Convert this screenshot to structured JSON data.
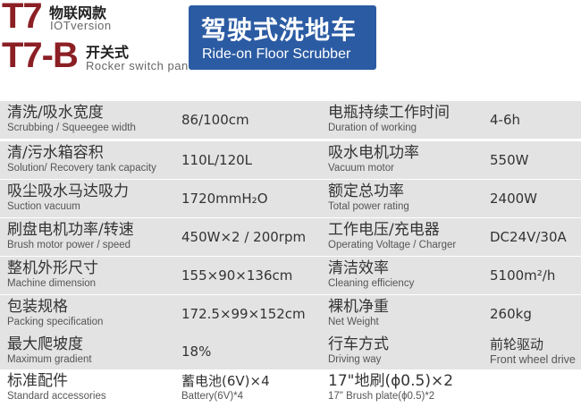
{
  "header": {
    "model1": "T7",
    "model1_cn": "物联网款",
    "model1_en": "IOTversion",
    "model2": "T7-B",
    "model2_cn": "开关式",
    "model2_en": "Rocker switch panel",
    "banner_cn": "驾驶式洗地车",
    "banner_en": "Ride-on Floor Scrubber",
    "banner_color": "#2b5ba3"
  },
  "rows": [
    {
      "l_cn": "清洗/吸水宽度",
      "l_en": "Scrubbing / Squeegee width",
      "v": "86/100cm",
      "r_cn": "电瓶持续工作时间",
      "r_en": "Duration of working",
      "rv": "4-6h"
    },
    {
      "l_cn": "清/污水箱容积",
      "l_en": "Solution/ Recovery tank capacity",
      "v": "110L/120L",
      "r_cn": "吸水电机功率",
      "r_en": "Vacuum motor",
      "rv": "550W"
    },
    {
      "l_cn": "吸尘吸水马达吸力",
      "l_en": "Suction vacuum",
      "v": "1720mmH₂O",
      "r_cn": "额定总功率",
      "r_en": "Total power rating",
      "rv": "2400W"
    },
    {
      "l_cn": "刷盘电机功率/转速",
      "l_en": "Brush motor power / speed",
      "v": "450W×2 / 200rpm",
      "r_cn": "工作电压/充电器",
      "r_en": "Operating Voltage / Charger",
      "rv": "DC24V/30A"
    },
    {
      "l_cn": "整机外形尺寸",
      "l_en": "Machine dimension",
      "v": "155×90×136cm",
      "r_cn": "清洁效率",
      "r_en": "Cleaning efficiency",
      "rv": "5100m²/h"
    },
    {
      "l_cn": "包装规格",
      "l_en": "Packing specification",
      "v": "172.5×99×152cm",
      "r_cn": "裸机净重",
      "r_en": "Net Weight",
      "rv": "260kg"
    },
    {
      "l_cn": "最大爬坡度",
      "l_en": "Maximum gradient",
      "v": "18%",
      "r_cn": "行车方式",
      "r_en": "Driving way",
      "rv_cn": "前轮驱动",
      "rv_en": "Front wheel drive"
    },
    {
      "l_cn": "标准配件",
      "l_en": "Standard accessories",
      "v_cn": "蓄电池(6V)×4",
      "v_en": "Battery(6V)*4",
      "r_cn": "17\"地刷(ϕ0.5)×2",
      "r_en": "17\" Brush plate(ϕ0.5)*2"
    }
  ]
}
